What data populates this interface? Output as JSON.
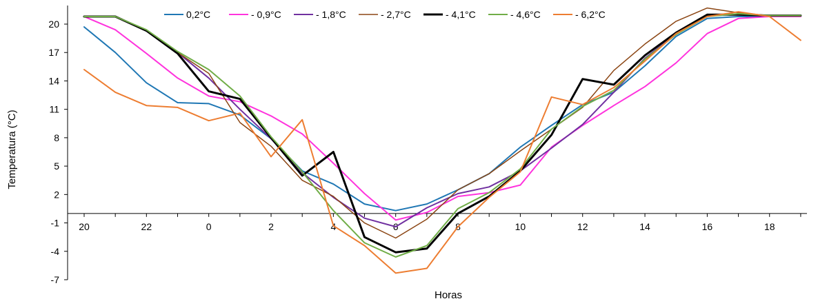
{
  "chart_data": {
    "type": "line",
    "title": "",
    "xlabel": "Horas",
    "ylabel": "Temperatura (°C)",
    "ylim": [
      -7,
      22
    ],
    "yticks": [
      -7,
      -4,
      -1,
      2,
      5,
      8,
      11,
      14,
      17,
      20
    ],
    "xticks": [
      "20",
      "22",
      "0",
      "2",
      "4",
      "6",
      "8",
      "10",
      "12",
      "14",
      "16",
      "18"
    ],
    "grid": false,
    "legend_position": "top",
    "x": [
      "20",
      "21",
      "22",
      "23",
      "0",
      "1",
      "2",
      "3",
      "4",
      "5",
      "6",
      "7",
      "8",
      "9",
      "10",
      "11",
      "12",
      "13",
      "14",
      "15",
      "16",
      "17",
      "18",
      "19"
    ],
    "series": [
      {
        "name": "0,2°C",
        "color": "#1F77B4",
        "width": 2,
        "values": [
          19.7,
          17.0,
          13.8,
          11.7,
          11.6,
          10.4,
          7.9,
          4.5,
          3.1,
          1.0,
          0.3,
          1.0,
          2.5,
          4.2,
          7.0,
          9.3,
          11.5,
          12.8,
          15.6,
          18.7,
          20.6,
          20.8,
          20.8,
          20.8
        ]
      },
      {
        "name": "- 0,9°C",
        "color": "#FF33DD",
        "width": 2,
        "values": [
          20.8,
          19.4,
          16.9,
          14.3,
          12.4,
          11.8,
          10.3,
          8.4,
          5.3,
          2.1,
          -0.7,
          0.1,
          1.8,
          2.2,
          3.0,
          7.0,
          9.3,
          11.4,
          13.4,
          15.9,
          19.0,
          20.6,
          20.8,
          20.8
        ]
      },
      {
        "name": "- 1,8°C",
        "color": "#7030A0",
        "width": 2,
        "values": [
          20.8,
          20.8,
          19.3,
          17.0,
          14.3,
          11.0,
          7.9,
          4.3,
          1.7,
          -0.5,
          -1.4,
          0.6,
          2.1,
          2.8,
          4.5,
          6.9,
          9.4,
          12.8,
          16.4,
          19.0,
          20.9,
          21.0,
          20.9,
          20.9
        ]
      },
      {
        "name": "- 2,7°C",
        "color": "#8B4513",
        "width": 1.5,
        "values": [
          20.8,
          20.8,
          19.3,
          17.0,
          14.8,
          9.6,
          7.1,
          3.5,
          1.8,
          -1.0,
          -2.6,
          -0.6,
          2.5,
          4.2,
          6.6,
          8.9,
          11.2,
          15.1,
          17.9,
          20.3,
          21.7,
          21.2,
          20.9,
          20.9
        ]
      },
      {
        "name": "- 4,1°C",
        "color": "#000000",
        "width": 3,
        "values": [
          20.8,
          20.8,
          19.3,
          16.9,
          12.9,
          12.1,
          8.0,
          4.0,
          6.5,
          -2.5,
          -4.1,
          -3.7,
          0.0,
          1.8,
          4.5,
          8.3,
          14.2,
          13.6,
          16.7,
          19.1,
          21.0,
          21.0,
          20.9,
          20.9
        ]
      },
      {
        "name": "- 4,6°C",
        "color": "#70AD47",
        "width": 2,
        "values": [
          20.8,
          20.8,
          19.4,
          17.1,
          15.2,
          12.4,
          8.1,
          4.4,
          0.3,
          -3.1,
          -4.6,
          -3.4,
          0.5,
          2.2,
          4.7,
          8.9,
          11.3,
          13.0,
          16.3,
          18.9,
          20.8,
          21.1,
          20.9,
          20.9
        ]
      },
      {
        "name": "- 6,2°C",
        "color": "#ED7D31",
        "width": 2,
        "values": [
          15.2,
          12.8,
          11.4,
          11.2,
          9.8,
          10.6,
          6.0,
          9.9,
          -1.3,
          -3.4,
          -6.3,
          -5.8,
          -1.4,
          1.7,
          4.4,
          12.3,
          11.5,
          13.3,
          16.1,
          19.0,
          20.8,
          21.3,
          20.8,
          18.3
        ]
      }
    ]
  }
}
